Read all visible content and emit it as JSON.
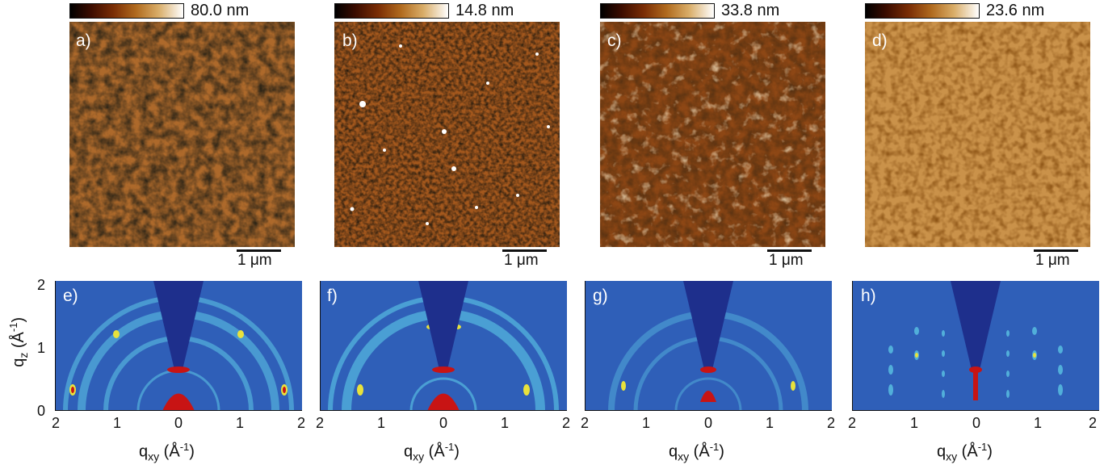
{
  "afm_panels": [
    {
      "label": "a)",
      "colorbar_max": "80.0 nm",
      "scale": "1 μm",
      "texture": "dark-coarse"
    },
    {
      "label": "b)",
      "colorbar_max": "14.8 nm",
      "scale": "1 μm",
      "texture": "fine-grain"
    },
    {
      "label": "c)",
      "colorbar_max": "33.8 nm",
      "scale": "1 μm",
      "texture": "bright-coarse"
    },
    {
      "label": "d)",
      "colorbar_max": "23.6 nm",
      "scale": "1 μm",
      "texture": "bright-grain"
    }
  ],
  "giwaxs_panels": [
    {
      "label": "e)"
    },
    {
      "label": "f)"
    },
    {
      "label": "g)"
    },
    {
      "label": "h)"
    }
  ],
  "axes": {
    "x_ticks": [
      "2",
      "1",
      "0",
      "1",
      "2"
    ],
    "y_ticks": [
      "2",
      "1",
      "0"
    ],
    "x_title": "q",
    "x_title_sub": "xy",
    "x_title_unit": " (Å",
    "x_title_exp": "-1",
    "x_title_close": ")",
    "y_title": "q",
    "y_title_sub": "z",
    "y_title_unit": " (Å",
    "y_title_exp": "-1",
    "y_title_close": ")"
  },
  "colors": {
    "afm_dark": "#3a1000",
    "afm_mid": "#a0561a",
    "afm_light": "#e8c27a",
    "giwaxs_bg": "#2f5fb8",
    "giwaxs_wedge": "#1e2f8c",
    "giwaxs_ring": "#5ec9e6",
    "giwaxs_hot": "#c81414"
  }
}
